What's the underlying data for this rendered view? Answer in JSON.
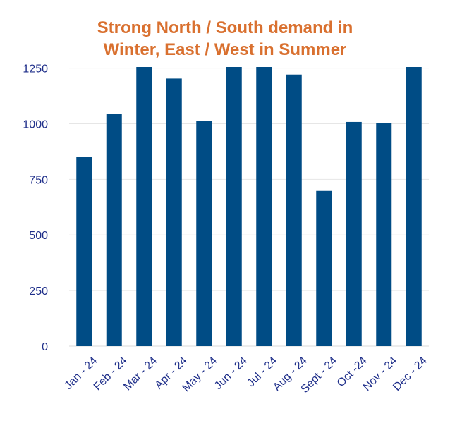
{
  "chart_data": {
    "type": "bar",
    "title_lines": [
      "Strong North / South demand in",
      "Winter, East / West in Summer"
    ],
    "categories": [
      "Jan - 24",
      "Feb - 24",
      "Mar - 24",
      "Apr - 24",
      "May - 24",
      "Jun - 24",
      "Jul - 24",
      "Aug - 24",
      "Sept - 24",
      "Oct -24",
      "Nov - 24",
      "Dec - 24"
    ],
    "values": [
      850,
      1045,
      1255,
      1203,
      1014,
      1255,
      1255,
      1221,
      698,
      1008,
      1002,
      1255
    ],
    "ylim": [
      0,
      1255
    ],
    "yticks": [
      "0",
      "250",
      "500",
      "750",
      "1000",
      "1250"
    ],
    "ytick_values": [
      0,
      250,
      500,
      750,
      1000,
      1250
    ],
    "xlabel": "",
    "ylabel": "",
    "grid": true,
    "colors": {
      "bar": "#004C85",
      "title": "#D9702F",
      "tick": "#1F2F8A",
      "grid": "#E6E6E6"
    }
  }
}
